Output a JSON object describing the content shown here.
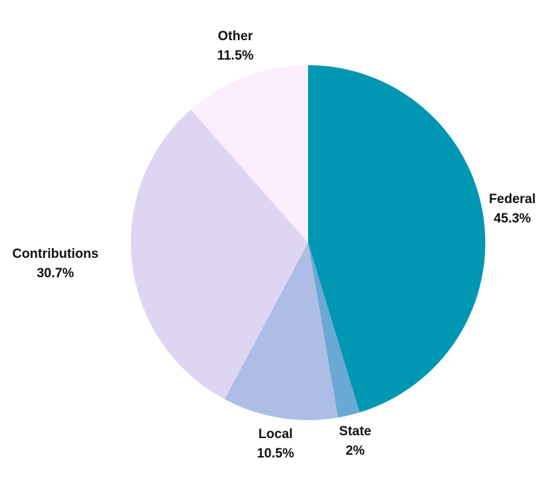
{
  "chart_data": {
    "type": "pie",
    "title": "",
    "slices": [
      {
        "label": "Federal",
        "value": 45.3,
        "display": "45.3%",
        "color": "#0097b2"
      },
      {
        "label": "State",
        "value": 2,
        "display": "2%",
        "color": "#6aa9d4"
      },
      {
        "label": "Local",
        "value": 10.5,
        "display": "10.5%",
        "color": "#adbde6"
      },
      {
        "label": "Contributions",
        "value": 30.7,
        "display": "30.7%",
        "color": "#ded5f3"
      },
      {
        "label": "Other",
        "value": 11.5,
        "display": "11.5%",
        "color": "#fdeefd"
      }
    ],
    "start_angle": "12 o'clock",
    "direction": "clockwise",
    "legend": "none",
    "label_position": "outside"
  }
}
